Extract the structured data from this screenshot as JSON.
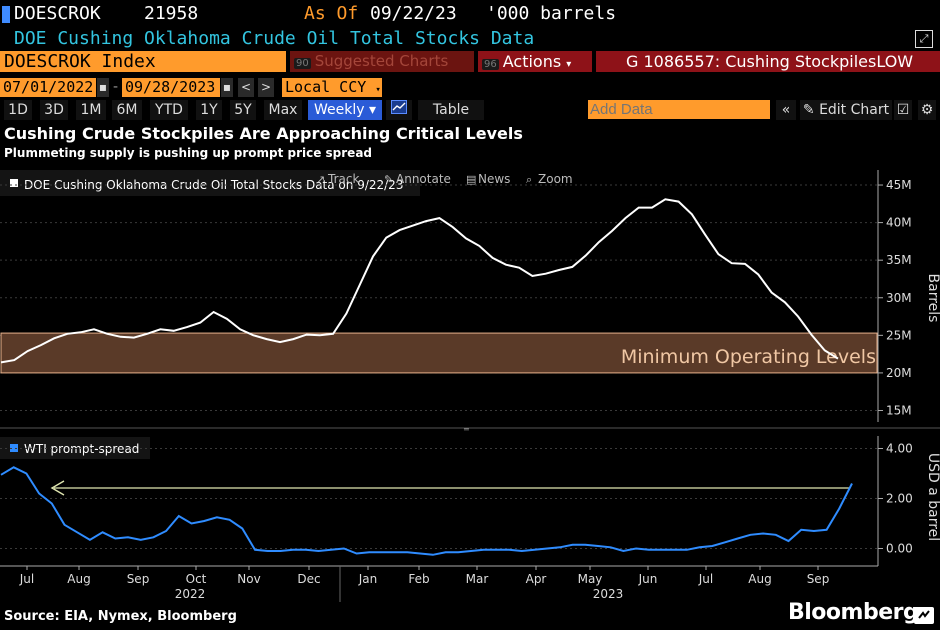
{
  "header": {
    "ticker": "DOESCROK",
    "code": "21958",
    "asof_label": "As Of",
    "asof_date": "09/22/23",
    "units": "'000 barrels",
    "description": "DOE Cushing Oklahoma Crude Oil Total Stocks Data",
    "security": "DOESCROK Index",
    "suggested_num": "90",
    "suggested": "Suggested Charts",
    "actions_num": "96",
    "actions": "Actions",
    "gtitle": "G 1086557: Cushing StockpilesLOW"
  },
  "range": {
    "start": "07/01/2022",
    "end": "09/28/2023",
    "currency": "Local CCY"
  },
  "periods": [
    "1D",
    "3D",
    "1M",
    "6M",
    "YTD",
    "1Y",
    "5Y",
    "Max"
  ],
  "toolbar": {
    "freq": "Weekly",
    "table": "Table",
    "add_placeholder": "Add Data",
    "edit_chart": "Edit Chart"
  },
  "tools": {
    "track": "Track",
    "annotate": "Annotate",
    "news": "News",
    "zoom": "Zoom"
  },
  "colors": {
    "accent_orange": "#ff9b2c",
    "dark_red": "#8e1218",
    "highlight_blue": "#2a5bd7",
    "spread_line": "#2f8cff",
    "stocks_line": "#ffffff",
    "band_fill": "#5a3a28",
    "band_border": "#e8b28c"
  },
  "chart_data": [
    {
      "type": "line",
      "title": "Cushing Crude Stockpiles Are Approaching Critical Levels",
      "subtitle": "Plummeting supply is pushing up prompt price spread",
      "legend": "DOE Cushing Oklahoma Crude Oil Total Stocks Data on 9/22/23",
      "ylabel": "Barrels",
      "yticks": [
        "15M",
        "20M",
        "25M",
        "30M",
        "35M",
        "40M",
        "45M"
      ],
      "ylim": [
        14,
        47
      ],
      "annotation": "Minimum Operating Levels",
      "band": [
        20,
        25.3
      ],
      "series": [
        {
          "values": [
            21.4,
            21.7,
            22.9,
            23.7,
            24.6,
            25.2,
            25.4,
            25.8,
            25.2,
            24.8,
            24.7,
            25.2,
            25.8,
            25.6,
            26.1,
            26.7,
            28.1,
            27.2,
            25.8,
            25.0,
            24.5,
            24.1,
            24.5,
            25.1,
            25.0,
            25.2,
            27.9,
            31.7,
            35.5,
            38.0,
            39.0,
            39.6,
            40.2,
            40.6,
            39.4,
            37.9,
            36.9,
            35.3,
            34.4,
            34.0,
            32.9,
            33.2,
            33.7,
            34.1,
            35.6,
            37.4,
            38.9,
            40.6,
            42.0,
            42.0,
            43.1,
            42.8,
            41.1,
            38.4,
            35.8,
            34.6,
            34.5,
            33.1,
            30.7,
            29.4,
            27.5,
            25.1,
            23.0,
            21.9
          ]
        }
      ]
    },
    {
      "type": "line",
      "legend": "WTI prompt-spread",
      "ylabel": "USD a barrel",
      "yticks": [
        "0.00",
        "2.00",
        "4.00"
      ],
      "ylim": [
        -0.7,
        4.5
      ],
      "xticks": [
        "Jul",
        "Aug",
        "Sep",
        "Oct",
        "Nov",
        "Dec",
        "Jan",
        "Feb",
        "Mar",
        "Apr",
        "May",
        "Jun",
        "Jul",
        "Aug",
        "Sep"
      ],
      "years": [
        "2022",
        "2023"
      ],
      "reference": 2.42,
      "series": [
        {
          "values": [
            2.95,
            3.25,
            3.0,
            2.2,
            1.8,
            0.95,
            0.65,
            0.35,
            0.65,
            0.4,
            0.45,
            0.35,
            0.45,
            0.7,
            1.3,
            1.0,
            1.1,
            1.25,
            1.15,
            0.8,
            -0.05,
            -0.1,
            -0.1,
            -0.05,
            -0.05,
            -0.1,
            -0.05,
            0.0,
            -0.2,
            -0.15,
            -0.15,
            -0.15,
            -0.15,
            -0.2,
            -0.25,
            -0.15,
            -0.15,
            -0.1,
            -0.05,
            -0.05,
            -0.05,
            -0.1,
            -0.05,
            0.0,
            0.05,
            0.15,
            0.15,
            0.1,
            0.05,
            -0.1,
            0.0,
            -0.05,
            -0.05,
            -0.05,
            -0.05,
            0.05,
            0.1,
            0.25,
            0.4,
            0.55,
            0.6,
            0.55,
            0.3,
            0.75,
            0.7,
            0.75,
            1.6,
            2.6
          ]
        }
      ]
    }
  ],
  "footer": {
    "source": "Source: EIA, Nymex, Bloomberg",
    "brand": "Bloomberg"
  }
}
